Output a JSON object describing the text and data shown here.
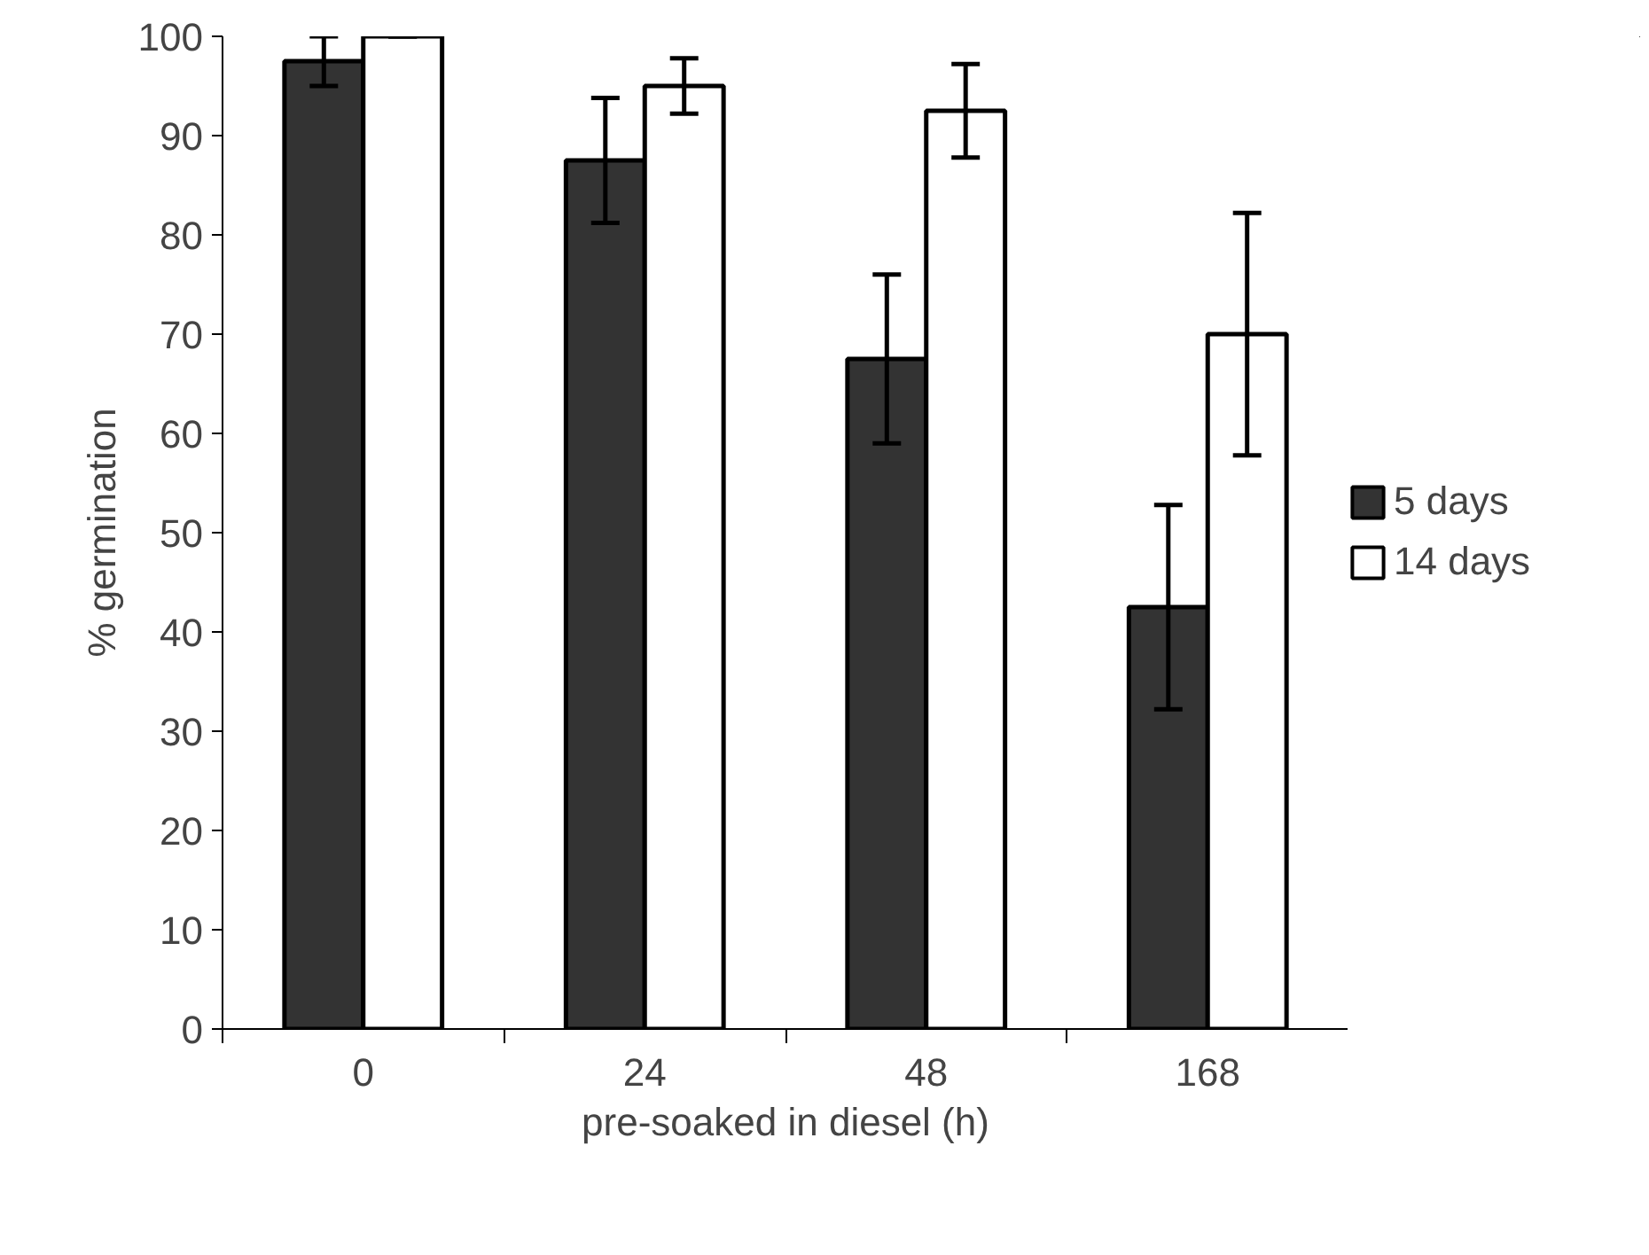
{
  "chart_data": {
    "type": "bar",
    "xlabel": "pre-soaked in diesel (h)",
    "ylabel": "% germination",
    "categories": [
      "0",
      "24",
      "48",
      "168"
    ],
    "series": [
      {
        "name": "5 days",
        "color": "#333333",
        "values": [
          97.5,
          87.5,
          67.5,
          42.5
        ],
        "errors": [
          2.5,
          6.3,
          8.5,
          10.3
        ]
      },
      {
        "name": "14 days",
        "color": "#ffffff",
        "values": [
          100,
          95,
          92.5,
          70
        ],
        "errors": [
          0,
          2.8,
          4.7,
          12.2
        ]
      }
    ],
    "ylim": [
      0,
      100
    ],
    "yticks": [
      0,
      10,
      20,
      30,
      40,
      50,
      60,
      70,
      80,
      90,
      100
    ],
    "grid": false,
    "legend": "right"
  }
}
